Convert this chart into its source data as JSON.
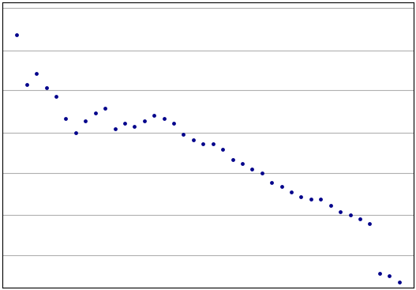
{
  "title": "",
  "xlabel": "",
  "ylabel": "",
  "years": [
    1968,
    1969,
    1970,
    1971,
    1972,
    1973,
    1974,
    1975,
    1976,
    1977,
    1978,
    1979,
    1980,
    1981,
    1982,
    1983,
    1984,
    1985,
    1986,
    1987,
    1988,
    1989,
    1990,
    1991,
    1992,
    1993,
    1994,
    1995,
    1996,
    1997,
    1998,
    1999,
    2000,
    2001,
    2002,
    2003,
    2004,
    2005,
    2006,
    2007
  ],
  "indices": [
    3.2,
    2.1,
    2.3,
    2.05,
    1.9,
    1.58,
    1.4,
    1.55,
    1.65,
    1.72,
    1.45,
    1.52,
    1.48,
    1.55,
    1.62,
    1.58,
    1.52,
    1.38,
    1.32,
    1.28,
    1.28,
    1.22,
    1.12,
    1.08,
    1.03,
    1.0,
    0.92,
    0.89,
    0.85,
    0.82,
    0.8,
    0.8,
    0.76,
    0.72,
    0.7,
    0.68,
    0.65,
    0.43,
    0.42,
    0.4
  ],
  "dot_color": "#00008B",
  "dot_size": 12,
  "ylim_log": [
    0.38,
    4.2
  ],
  "xlim": [
    1966.5,
    2008.5
  ],
  "bg_color": "#ffffff",
  "plot_bg_color": "#ffffff",
  "grid_color": "#b0b0b0",
  "ytick_positions": [
    0.5,
    0.7,
    1.0,
    1.4,
    2.0,
    2.8,
    4.0
  ],
  "border_color": "#000000",
  "figsize": [
    5.27,
    3.67
  ],
  "dpi": 100
}
